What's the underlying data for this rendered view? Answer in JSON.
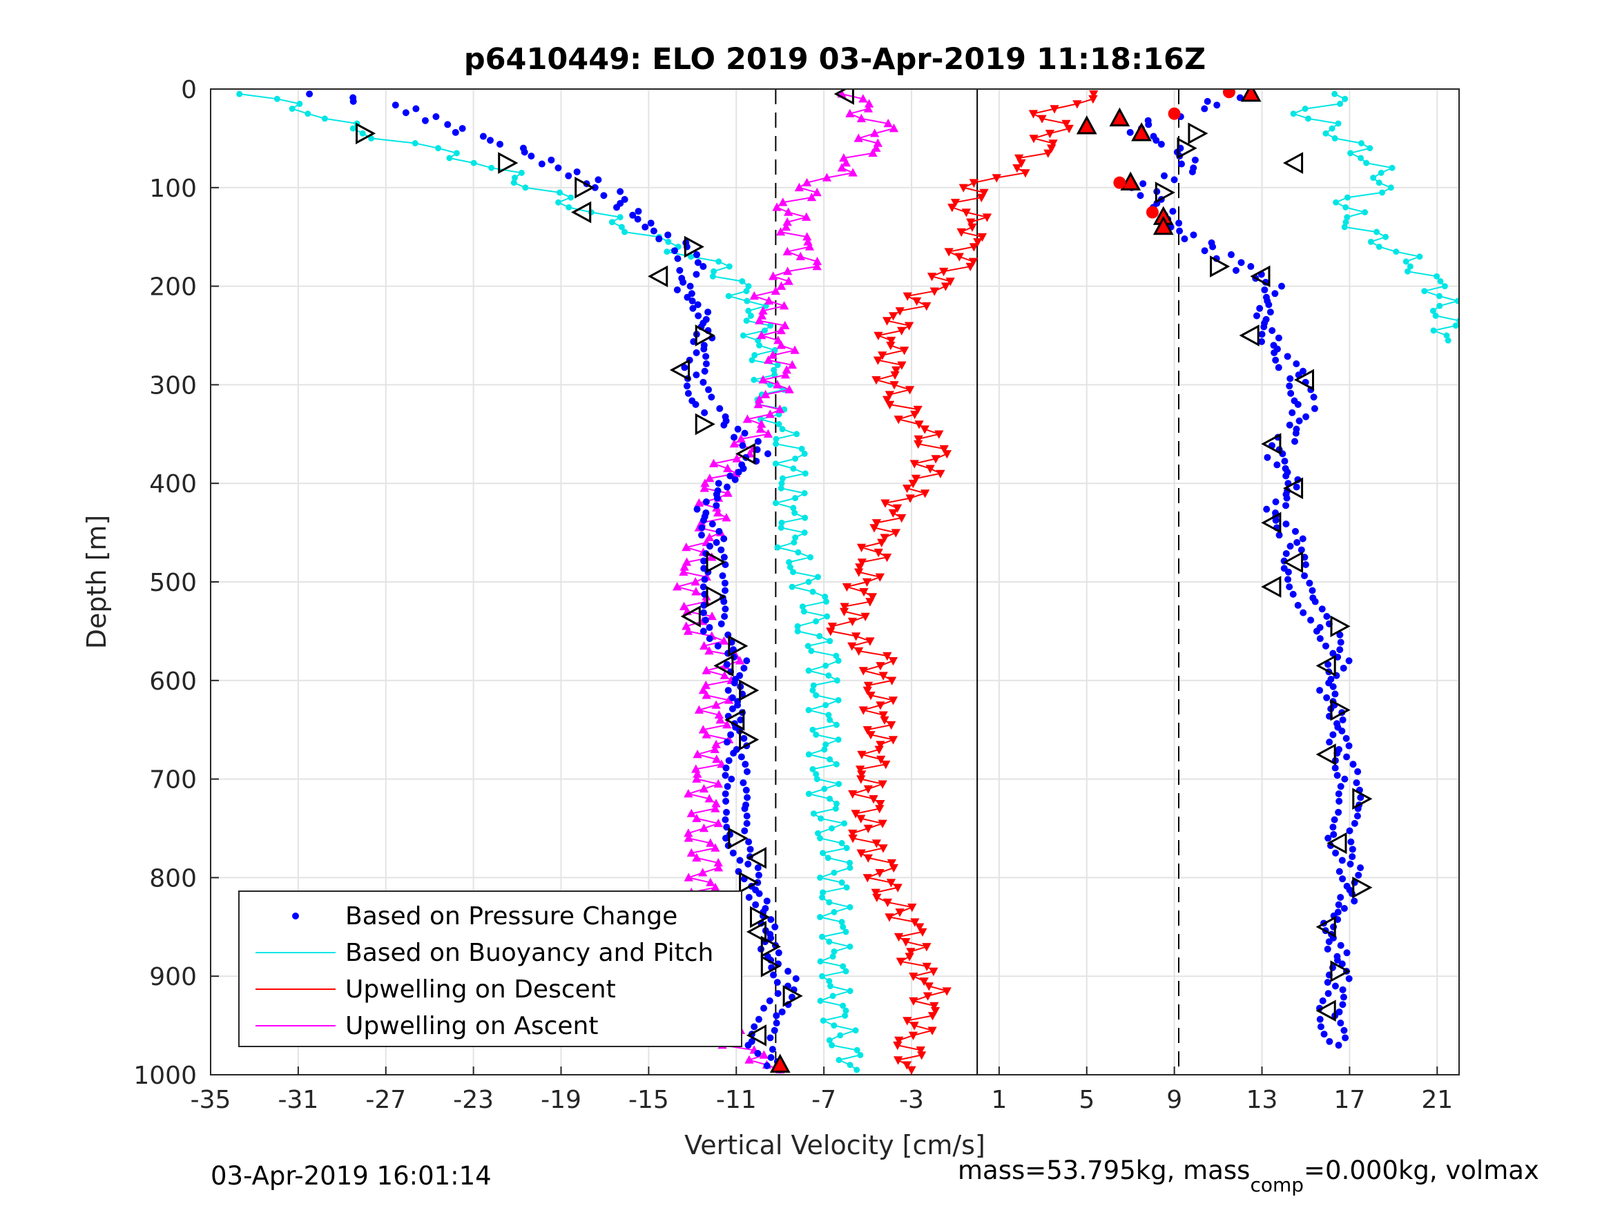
{
  "chart_data": {
    "type": "scatter",
    "title": "p6410449: ELO 2019 03-Apr-2019 11:18:16Z",
    "xlabel": "Vertical Velocity [cm/s]",
    "ylabel": "Depth [m]",
    "xlim": [
      -35,
      22
    ],
    "ylim": [
      0,
      1000
    ],
    "y_reversed": true,
    "grid": true,
    "x_ticks": [
      "-35",
      "-31",
      "-27",
      "-23",
      "-19",
      "-15",
      "-11",
      "-7",
      "-3",
      "1",
      "5",
      "9",
      "13",
      "17",
      "21"
    ],
    "x_tick_values": [
      -35,
      -31,
      -27,
      -23,
      -19,
      -15,
      -11,
      -7,
      -3,
      1,
      5,
      9,
      13,
      17,
      21
    ],
    "y_ticks": [
      "0",
      "100",
      "200",
      "300",
      "400",
      "500",
      "600",
      "700",
      "800",
      "900",
      "1000"
    ],
    "y_tick_values": [
      0,
      100,
      200,
      300,
      400,
      500,
      600,
      700,
      800,
      900,
      1000
    ],
    "reference_lines": [
      {
        "x": -9.2,
        "style": "dashed"
      },
      {
        "x": 0.0,
        "style": "solid"
      },
      {
        "x": 9.2,
        "style": "dashed"
      }
    ],
    "legend_position": "bottom-left",
    "series": [
      {
        "name": "Based on Pressure Change",
        "color": "#0000ff",
        "marker": "dot",
        "branches": [
          {
            "depth": [
              5,
              20,
              40,
              60,
              80,
              100,
              120,
              140,
              160,
              180,
              200,
              230,
              260,
              290,
              320,
              345,
              370,
              400,
              430,
              460,
              490,
              520,
              550,
              580,
              610,
              640,
              670,
              700,
              730,
              760,
              790,
              820,
              850,
              880,
              910,
              940,
              970,
              995
            ],
            "velocity": [
              -30,
              -26,
              -24,
              -21,
              -19,
              -17,
              -16,
              -15,
              -13.5,
              -13,
              -13.5,
              -12.5,
              -12.5,
              -13,
              -12.5,
              -11,
              -10,
              -11.5,
              -12.5,
              -12,
              -12,
              -12,
              -12,
              -11,
              -11,
              -11,
              -11,
              -11,
              -11,
              -11,
              -10.5,
              -10,
              -9.5,
              -9.5,
              -8.5,
              -9.5,
              -10,
              -9
            ]
          },
          {
            "depth": [
              5,
              20,
              40,
              60,
              80,
              100,
              120,
              140,
              160,
              180,
              200,
              230,
              260,
              290,
              320,
              345,
              370,
              400,
              430,
              460,
              490,
              520,
              550,
              580,
              610,
              640,
              670,
              700,
              730,
              760,
              790,
              820,
              850,
              880,
              910,
              940,
              970
            ],
            "velocity": [
              12,
              10,
              7,
              9,
              10,
              7.5,
              8.5,
              9,
              10.5,
              12,
              13.5,
              13,
              13.5,
              14.5,
              15,
              14.5,
              13.5,
              14.5,
              13.5,
              14.5,
              14.5,
              15,
              16,
              16.5,
              16,
              16.5,
              16.5,
              17,
              17,
              16.5,
              17,
              17,
              16,
              16.5,
              16.5,
              16,
              16.5
            ]
          }
        ]
      },
      {
        "name": "Based on Buoyancy and Pitch",
        "color": "#00e5e5",
        "marker": "circle-line",
        "branches": [
          {
            "depth": [
              5,
              25,
              45,
              60,
              80,
              100,
              120,
              140,
              160,
              180,
              200,
              230,
              260,
              290,
              320,
              345,
              370,
              400,
              430,
              460,
              490,
              520,
              550,
              580,
              610,
              640,
              670,
              700,
              730,
              760,
              790,
              820,
              850,
              880,
              910,
              940,
              970,
              995
            ],
            "velocity": [
              -33,
              -30,
              -28,
              -25,
              -22,
              -20,
              -18,
              -16,
              -14,
              -12,
              -11,
              -10,
              -10,
              -9.5,
              -9.5,
              -9,
              -8.5,
              -8.5,
              -8.5,
              -8.5,
              -8,
              -7.5,
              -7.5,
              -7,
              -7,
              -7,
              -7,
              -7,
              -7,
              -6.5,
              -6.5,
              -6.5,
              -6.5,
              -6.5,
              -6.5,
              -6.5,
              -6,
              -5.5
            ]
          },
          {
            "depth": [
              5,
              25,
              50,
              75,
              95,
              115,
              135,
              160,
              180,
              200,
              230,
              255
            ],
            "velocity": [
              17,
              15,
              17,
              18,
              19,
              17,
              17,
              19,
              20,
              21,
              21.5,
              21.5
            ]
          }
        ]
      },
      {
        "name": "Upwelling on Descent",
        "color": "#ff0000",
        "marker": "triangle-down-line",
        "branches": [
          {
            "depth": [
              5,
              20,
              40,
              60,
              80,
              100,
              120,
              140,
              160,
              180,
              200,
              230,
              260,
              290,
              320,
              345,
              370,
              400,
              430,
              460,
              490,
              520,
              550,
              580,
              610,
              640,
              670,
              700,
              730,
              760,
              790,
              820,
              850,
              880,
              910,
              940,
              970,
              995
            ],
            "velocity": [
              6,
              3,
              3.5,
              3,
              2,
              0,
              -0.5,
              0,
              -0.5,
              -1,
              -2,
              -3.5,
              -4,
              -4,
              -3.5,
              -2.5,
              -2,
              -2.5,
              -4,
              -4.5,
              -5,
              -5.5,
              -6,
              -4.5,
              -4.5,
              -4.5,
              -4.5,
              -5,
              -5,
              -5,
              -4.5,
              -4,
              -3,
              -3,
              -2,
              -2.5,
              -3,
              -3
            ]
          }
        ]
      },
      {
        "name": "Upwelling on Ascent",
        "color": "#ff00ff",
        "marker": "triangle-up-line",
        "branches": [
          {
            "depth": [
              5,
              20,
              40,
              60,
              80,
              100,
              120,
              140,
              160,
              180,
              200,
              230,
              260,
              290,
              320,
              345,
              370,
              400,
              430,
              460,
              490,
              520,
              550,
              580,
              610,
              640,
              670,
              700,
              730,
              760,
              790,
              820,
              850,
              880,
              910,
              940,
              970,
              995
            ],
            "velocity": [
              -5.5,
              -5.5,
              -4.5,
              -5,
              -6,
              -7.5,
              -8.5,
              -8.5,
              -8,
              -8,
              -9.5,
              -9.5,
              -9,
              -9,
              -9.5,
              -10,
              -11,
              -12,
              -12,
              -12.5,
              -13,
              -13,
              -12.5,
              -11.5,
              -12,
              -12,
              -12,
              -12.5,
              -12.5,
              -12.5,
              -12.5,
              -12.5,
              -12.5,
              -12.5,
              -12,
              -12,
              -11,
              -9
            ]
          }
        ]
      },
      {
        "name": "",
        "color": "#000000",
        "marker": "triangle-right-open",
        "depth": [
          45,
          75,
          100,
          160,
          250,
          340,
          480,
          515,
          565,
          610,
          660,
          760,
          805,
          840,
          870,
          890,
          920,
          45,
          60,
          105,
          180,
          545,
          630,
          720,
          810,
          895
        ],
        "velocity": [
          -28,
          -21.5,
          -18,
          -13,
          -12.5,
          -12.5,
          -12,
          -12,
          -11,
          -10.5,
          -10.5,
          -11,
          -10.5,
          -10,
          -9.5,
          -9.5,
          -8.5,
          10,
          9.5,
          8.5,
          11,
          16.5,
          16.5,
          17.5,
          17.5,
          16.5
        ]
      },
      {
        "name": "",
        "color": "#000000",
        "marker": "triangle-left-open",
        "depth": [
          5,
          125,
          190,
          285,
          370,
          535,
          585,
          640,
          780,
          855,
          960,
          75,
          190,
          250,
          295,
          360,
          405,
          440,
          480,
          505,
          585,
          675,
          765,
          850,
          935
        ],
        "velocity": [
          -6,
          -18,
          -14.5,
          -13.5,
          -10.5,
          -13,
          -11.5,
          -11,
          -10,
          -10,
          -10,
          14.5,
          13,
          12.5,
          15,
          13.5,
          14.5,
          13.5,
          14.5,
          13.5,
          16,
          16,
          16.5,
          16,
          16
        ]
      },
      {
        "name": "",
        "color": "#ff0000",
        "marker": "triangle-up-filled",
        "depth": [
          5,
          30,
          38,
          45,
          95,
          130,
          140,
          990
        ],
        "velocity": [
          12.5,
          6.5,
          5,
          7.5,
          7,
          8.5,
          8.5,
          -9
        ]
      },
      {
        "name": "",
        "color": "#ff0000",
        "marker": "dot-large",
        "depth": [
          3,
          25,
          95,
          125
        ],
        "velocity": [
          11.5,
          9,
          6.5,
          8
        ]
      }
    ],
    "annotations": [
      {
        "text": "03-Apr-2019 16:01:14",
        "position": "bottom-left"
      },
      {
        "text": "mass=53.795kg, mass",
        "subscript": "comp",
        "text_after": "=0.000kg, volmax",
        "position": "bottom-right"
      }
    ]
  }
}
